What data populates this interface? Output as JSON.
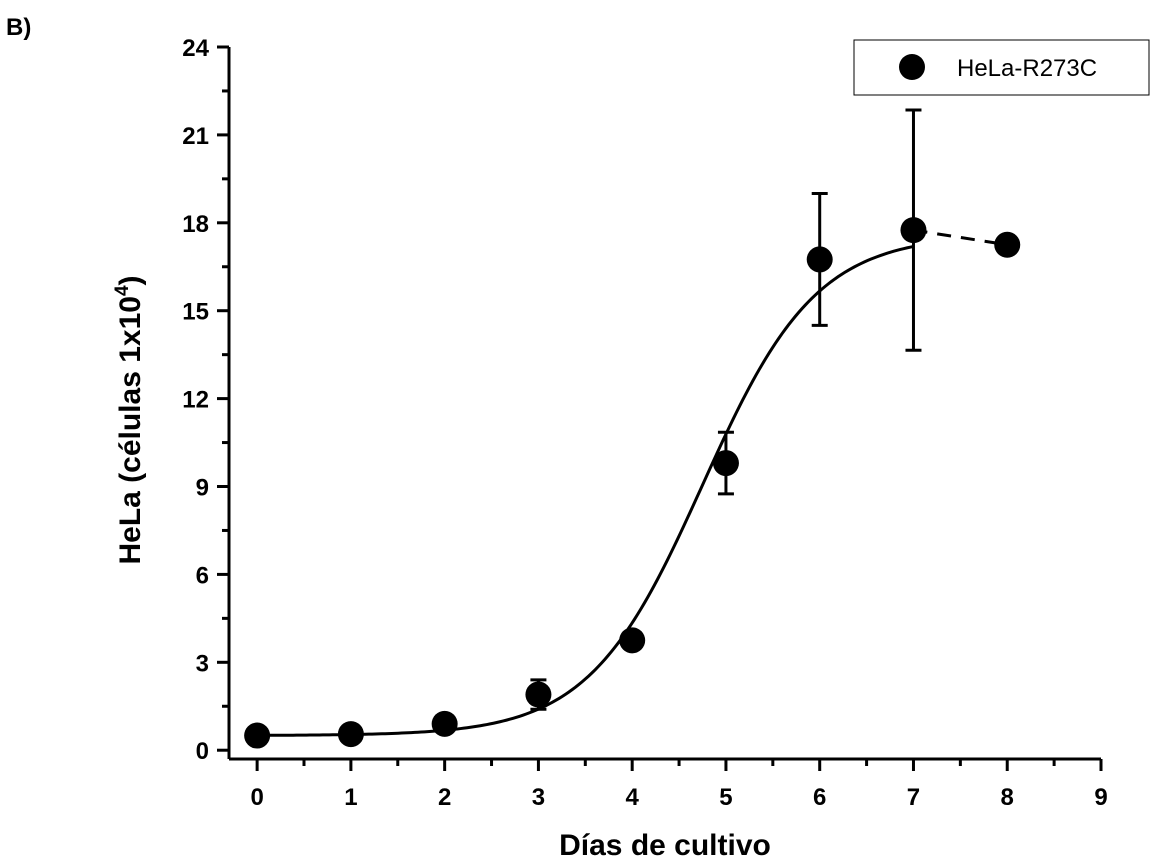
{
  "panel_label": "B)",
  "colors": {
    "marker": "#000000",
    "line": "#000000",
    "background": "#ffffff"
  },
  "chart_data": {
    "type": "scatter",
    "title": "",
    "xlabel": "Días de cultivo",
    "ylabel": "HeLa (células 1x10⁴)",
    "ylabel_main": "HeLa (células 1x10",
    "ylabel_sup": "4",
    "ylabel_tail": ")",
    "xlim": [
      -0.3,
      9
    ],
    "ylim": [
      -0.3,
      24
    ],
    "xticks": [
      0,
      1,
      2,
      3,
      4,
      5,
      6,
      7,
      8,
      9
    ],
    "yticks": [
      0,
      3,
      6,
      9,
      12,
      15,
      18,
      21,
      24
    ],
    "grid": false,
    "legend_position": "top-right",
    "series": [
      {
        "name": "HeLa-R273C",
        "marker": "circle",
        "x": [
          0,
          1,
          2,
          3,
          4,
          5,
          6,
          7,
          8
        ],
        "y": [
          0.5,
          0.55,
          0.9,
          1.9,
          3.75,
          9.8,
          16.75,
          17.75,
          17.25
        ],
        "error": [
          0,
          0,
          0,
          0.5,
          0,
          1.05,
          2.25,
          4.1,
          0
        ]
      }
    ],
    "fit_curve": {
      "form": "logistic",
      "baseline": 0.5,
      "plateau": 17.6,
      "midpoint": 4.75,
      "rate": 1.65,
      "x_range": [
        0,
        7
      ]
    },
    "dashed_segment": {
      "x": [
        7,
        8
      ],
      "y": [
        17.75,
        17.25
      ]
    }
  }
}
